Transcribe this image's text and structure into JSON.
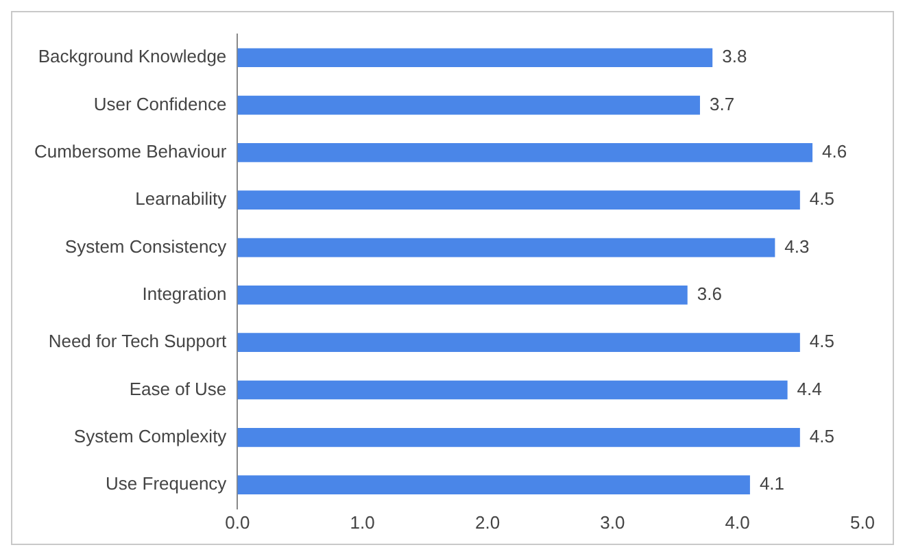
{
  "chart_data": {
    "type": "bar",
    "orientation": "horizontal",
    "categories": [
      "Background Knowledge",
      "User Confidence",
      "Cumbersome Behaviour",
      "Learnability",
      "System Consistency",
      "Integration",
      "Need for Tech Support",
      "Ease of Use",
      "System Complexity",
      "Use Frequency"
    ],
    "values": [
      3.8,
      3.7,
      4.6,
      4.5,
      4.3,
      3.6,
      4.5,
      4.4,
      4.5,
      4.1
    ],
    "color": "#4a86e8",
    "xlim": [
      0,
      5
    ],
    "xticks": [
      {
        "value": 0,
        "label": "0.0"
      },
      {
        "value": 1,
        "label": "1.0"
      },
      {
        "value": 2,
        "label": "2.0"
      },
      {
        "value": 3,
        "label": "3.0"
      },
      {
        "value": 4,
        "label": "4.0"
      },
      {
        "value": 5,
        "label": "5.0"
      }
    ],
    "grid": false,
    "legend": false,
    "data_labels": true
  }
}
